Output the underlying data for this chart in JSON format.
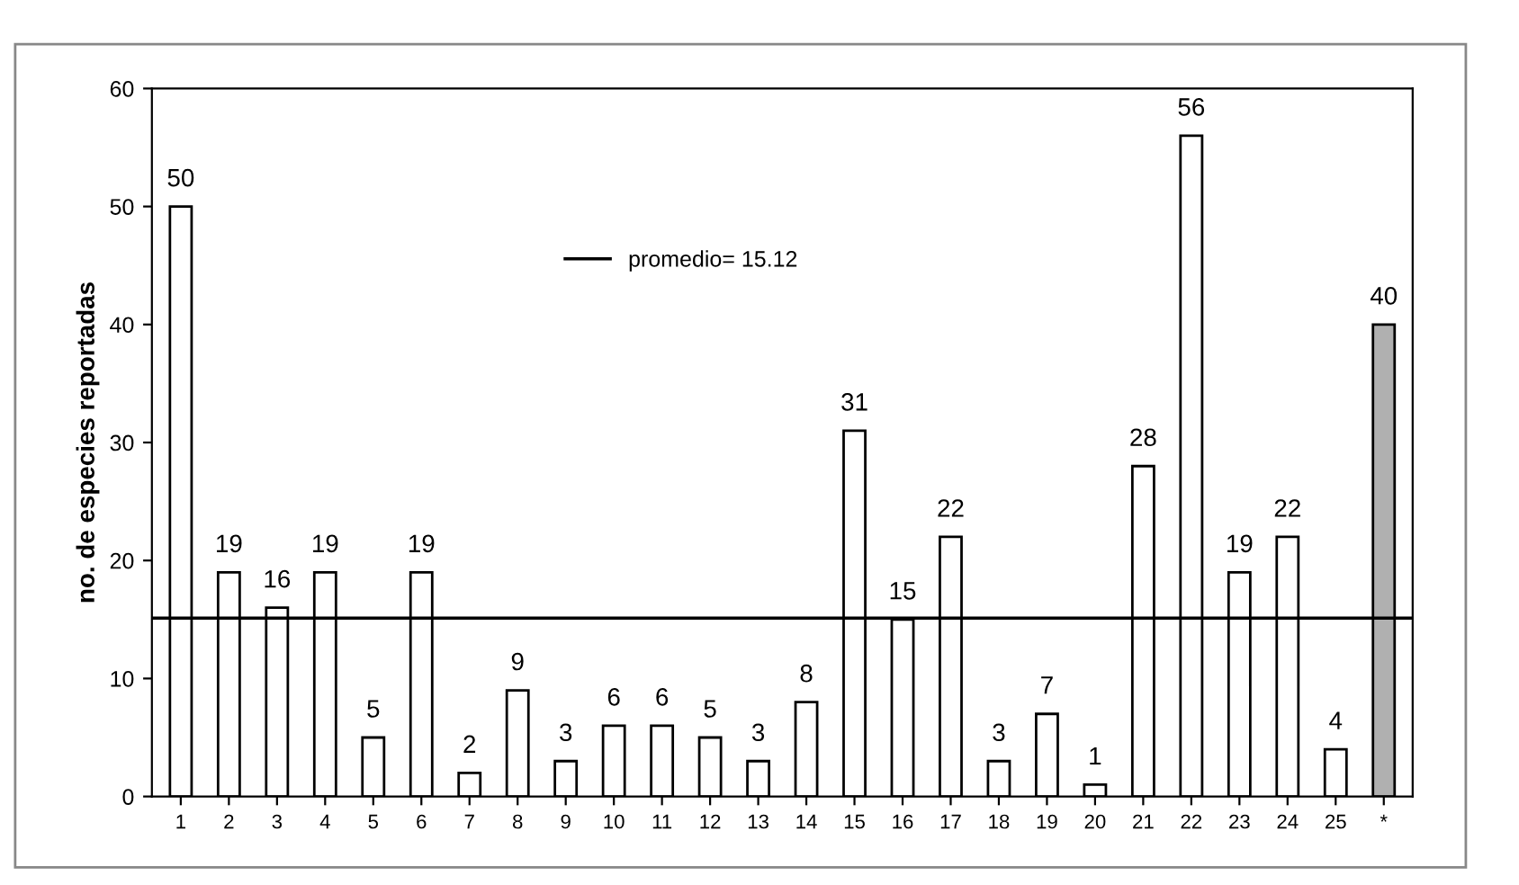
{
  "chart_data": {
    "type": "bar",
    "ylabel": "no. de especies reportadas",
    "categories": [
      "1",
      "2",
      "3",
      "4",
      "5",
      "6",
      "7",
      "8",
      "9",
      "10",
      "11",
      "12",
      "13",
      "14",
      "15",
      "16",
      "17",
      "18",
      "19",
      "20",
      "21",
      "22",
      "23",
      "24",
      "25",
      "*"
    ],
    "values": [
      50,
      19,
      16,
      19,
      5,
      19,
      2,
      9,
      3,
      6,
      6,
      5,
      3,
      8,
      31,
      15,
      22,
      3,
      7,
      1,
      28,
      56,
      19,
      22,
      4,
      40
    ],
    "colors": [
      "#ffffff",
      "#ffffff",
      "#ffffff",
      "#ffffff",
      "#ffffff",
      "#ffffff",
      "#ffffff",
      "#ffffff",
      "#ffffff",
      "#ffffff",
      "#ffffff",
      "#ffffff",
      "#ffffff",
      "#ffffff",
      "#ffffff",
      "#ffffff",
      "#ffffff",
      "#ffffff",
      "#ffffff",
      "#ffffff",
      "#ffffff",
      "#ffffff",
      "#ffffff",
      "#ffffff",
      "#ffffff",
      "#b0b0b0"
    ],
    "ylim": [
      0,
      60
    ],
    "yticks": [
      0,
      10,
      20,
      30,
      40,
      50,
      60
    ],
    "grid": false,
    "data_labels": true,
    "ref_lines": [
      {
        "axis": "y",
        "value": 15.12,
        "label": "promedio= 15.12",
        "color": "#000000",
        "line_style": "solid"
      }
    ]
  }
}
